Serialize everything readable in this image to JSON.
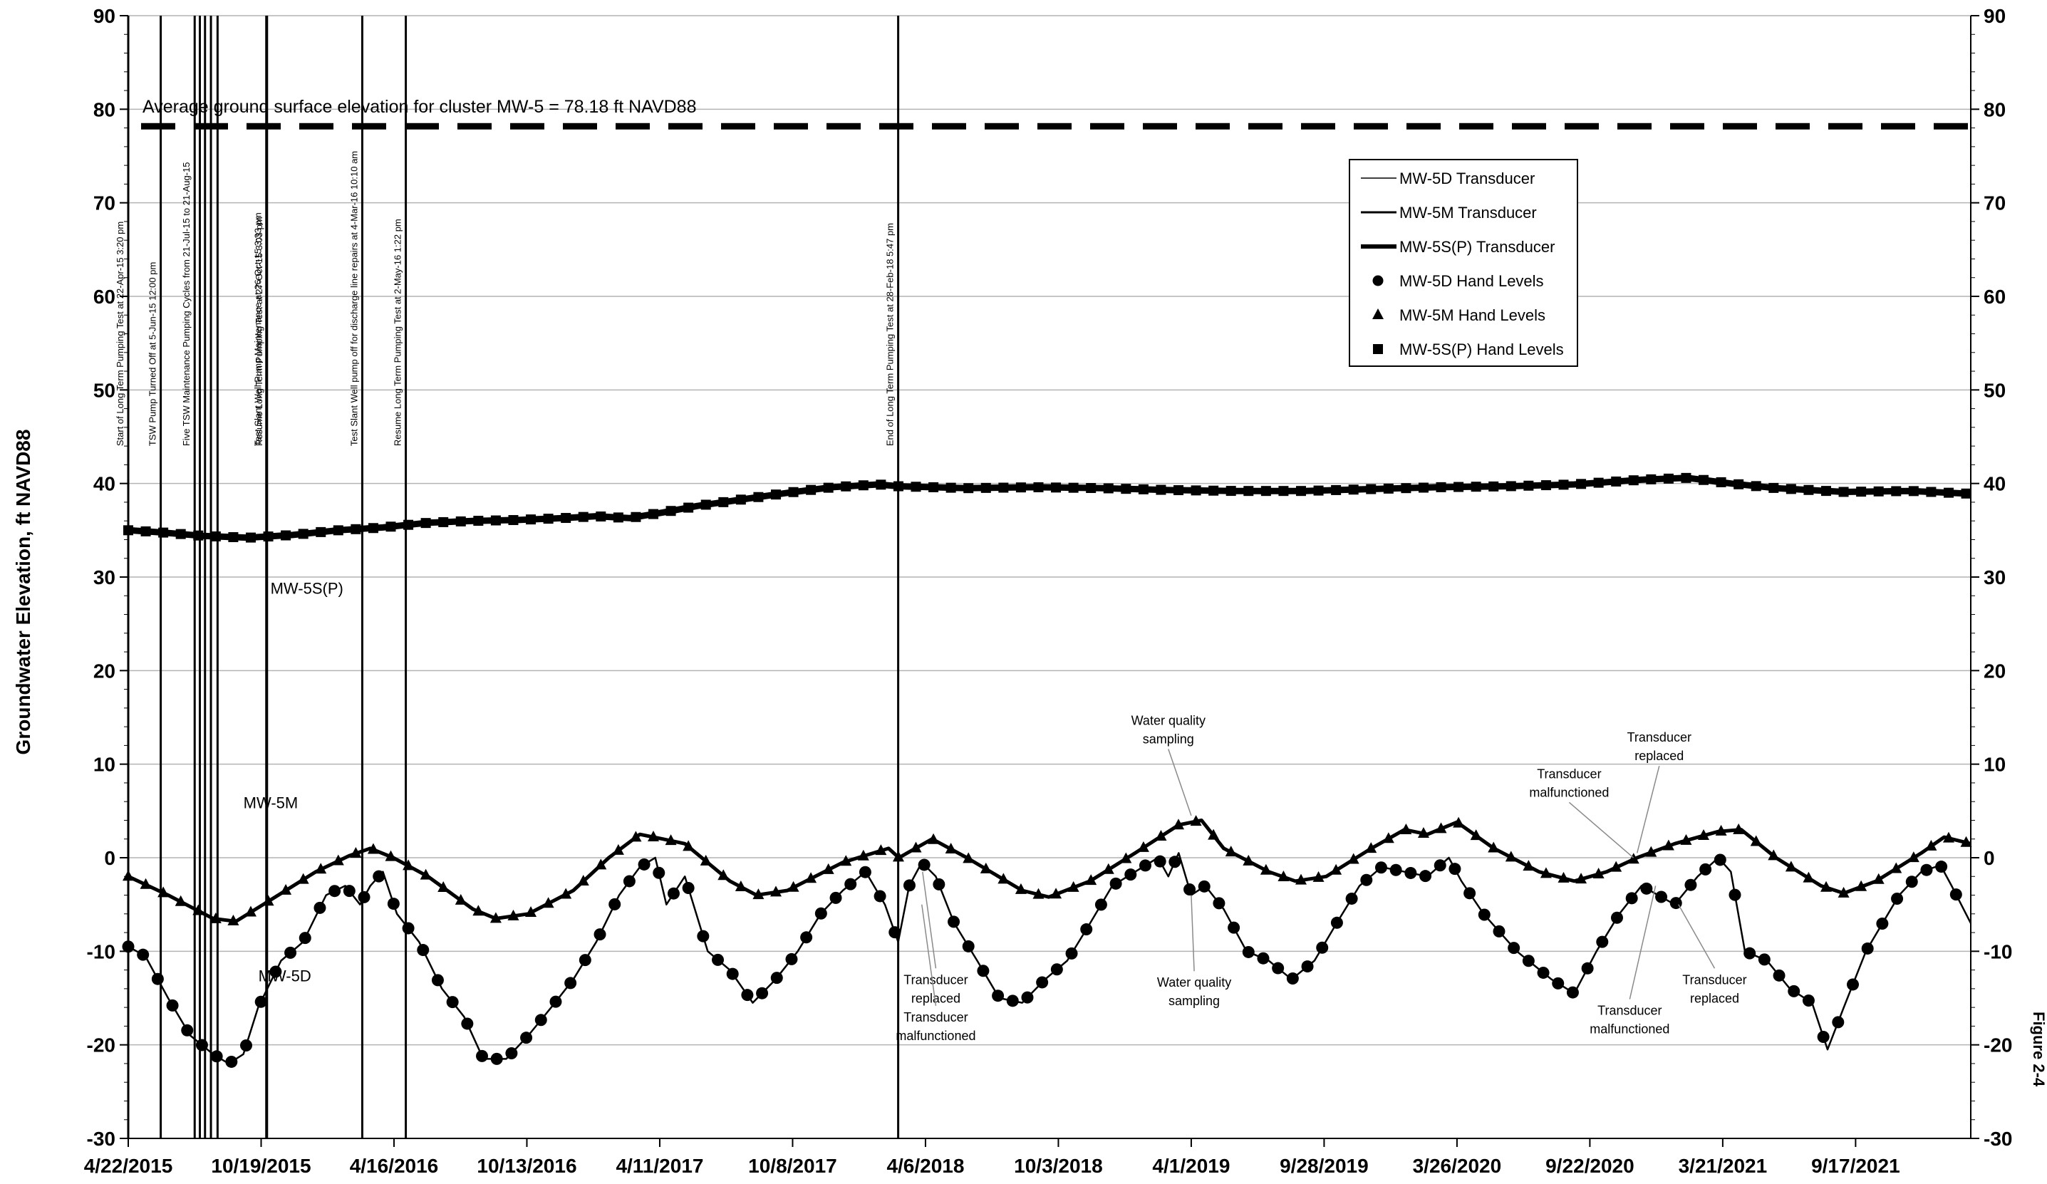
{
  "chart_data": {
    "type": "line",
    "ylabel": "Groundwater Elevation, ft NAVD88",
    "ylim": [
      -30,
      90
    ],
    "yticks": [
      "90",
      "80",
      "70",
      "60",
      "50",
      "40",
      "30",
      "20",
      "10",
      "0",
      "-10",
      "-20",
      "-30"
    ],
    "y2ticks": [
      "90",
      "80",
      "70",
      "60",
      "50",
      "40",
      "30",
      "20",
      "10",
      "0",
      "-10",
      "-20",
      "-30"
    ],
    "xlim": [
      "2015-04-22",
      "2022-02-20"
    ],
    "xticks": [
      {
        "date": "2015-04-22",
        "label": "4/22/2015"
      },
      {
        "date": "2015-10-19",
        "label": "10/19/2015"
      },
      {
        "date": "2016-04-16",
        "label": "4/16/2016"
      },
      {
        "date": "2016-10-13",
        "label": "10/13/2016"
      },
      {
        "date": "2017-04-11",
        "label": "4/11/2017"
      },
      {
        "date": "2017-10-08",
        "label": "10/8/2017"
      },
      {
        "date": "2018-04-06",
        "label": "4/6/2018"
      },
      {
        "date": "2018-10-03",
        "label": "10/3/2018"
      },
      {
        "date": "2019-04-01",
        "label": "4/1/2019"
      },
      {
        "date": "2019-09-28",
        "label": "9/28/2019"
      },
      {
        "date": "2020-03-26",
        "label": "3/26/2020"
      },
      {
        "date": "2020-09-22",
        "label": "9/22/2020"
      },
      {
        "date": "2021-03-21",
        "label": "3/21/2021"
      },
      {
        "date": "2021-09-17",
        "label": "9/17/2021"
      }
    ],
    "grid": true,
    "legend_position": "top-right",
    "legend": [
      {
        "label": "MW-5D Transducer",
        "kind": "line",
        "width": 1.5
      },
      {
        "label": "MW-5M Transducer",
        "kind": "line",
        "width": 3
      },
      {
        "label": "MW-5S(P) Transducer",
        "kind": "line",
        "width": 6
      },
      {
        "label": "MW-5D Hand Levels",
        "kind": "circle"
      },
      {
        "label": "MW-5M Hand Levels",
        "kind": "triangle"
      },
      {
        "label": "MW-5S(P) Hand Levels",
        "kind": "square"
      }
    ],
    "ground_surface": {
      "value": 78.18,
      "label": "Average ground surface elevation for cluster MW-5 = 78.18 ft NAVD88"
    },
    "events": [
      {
        "date": "2015-04-22",
        "label": "Start of Long Term Pumping Test at 22-Apr-15 3:20 pm"
      },
      {
        "date": "2015-06-05",
        "label": "TSW Pump Turned Off at 5-Jun-15 12:00 pm"
      },
      {
        "date": "2015-07-21",
        "label": "Five TSW Maintenance Pumping Cycles from 21-Jul-15 to 21-Aug-15"
      },
      {
        "date": "2015-07-28",
        "label": ""
      },
      {
        "date": "2015-08-04",
        "label": ""
      },
      {
        "date": "2015-08-12",
        "label": ""
      },
      {
        "date": "2015-08-21",
        "label": ""
      },
      {
        "date": "2015-10-26",
        "label": "Test Slant Well Pump Maintenance at 26-Oct-15 3:33 pm"
      },
      {
        "date": "2015-10-27",
        "label": "Resume Long Term Pumping Test at 27-Oct-15 3:03 pm"
      },
      {
        "date": "2016-03-04",
        "label": "Test Slant Well pump off for discharge line repairs at 4-Mar-16 10:10 am"
      },
      {
        "date": "2016-05-02",
        "label": "Resume Long Term Pumping Test at 2-May-16 1:22 pm"
      },
      {
        "date": "2018-02-28",
        "label": "End of Long Term Pumping Test at 28-Feb-18 5:47 pm"
      }
    ],
    "series": [
      {
        "name": "MW-5S(P)",
        "label": "MW-5S(P)",
        "points": [
          [
            "2015-04-22",
            35.0
          ],
          [
            "2015-06-01",
            34.8
          ],
          [
            "2015-08-01",
            34.4
          ],
          [
            "2015-10-01",
            34.2
          ],
          [
            "2015-12-01",
            34.5
          ],
          [
            "2016-02-01",
            35.0
          ],
          [
            "2016-04-01",
            35.3
          ],
          [
            "2016-06-01",
            35.8
          ],
          [
            "2016-08-01",
            36.0
          ],
          [
            "2016-10-01",
            36.1
          ],
          [
            "2016-12-01",
            36.3
          ],
          [
            "2017-01-15",
            36.5
          ],
          [
            "2017-03-01",
            36.3
          ],
          [
            "2017-04-15",
            36.9
          ],
          [
            "2017-06-01",
            37.6
          ],
          [
            "2017-08-01",
            38.3
          ],
          [
            "2017-10-01",
            39.0
          ],
          [
            "2017-12-01",
            39.6
          ],
          [
            "2018-02-01",
            39.9
          ],
          [
            "2018-03-01",
            39.7
          ],
          [
            "2018-06-01",
            39.5
          ],
          [
            "2018-09-01",
            39.6
          ],
          [
            "2018-12-01",
            39.5
          ],
          [
            "2019-03-01",
            39.3
          ],
          [
            "2019-06-01",
            39.2
          ],
          [
            "2019-09-01",
            39.2
          ],
          [
            "2019-12-01",
            39.4
          ],
          [
            "2020-03-01",
            39.6
          ],
          [
            "2020-06-01",
            39.7
          ],
          [
            "2020-09-01",
            39.9
          ],
          [
            "2020-12-01",
            40.4
          ],
          [
            "2021-02-01",
            40.6
          ],
          [
            "2021-04-01",
            40.0
          ],
          [
            "2021-06-01",
            39.5
          ],
          [
            "2021-09-01",
            39.1
          ],
          [
            "2021-12-01",
            39.2
          ],
          [
            "2022-02-20",
            38.9
          ]
        ]
      },
      {
        "name": "MW-5M",
        "label": "MW-5M",
        "points": [
          [
            "2015-04-22",
            -2.0
          ],
          [
            "2015-06-15",
            -4.0
          ],
          [
            "2015-08-15",
            -6.5
          ],
          [
            "2015-09-15",
            -6.8
          ],
          [
            "2015-11-01",
            -4.5
          ],
          [
            "2016-01-01",
            -1.5
          ],
          [
            "2016-02-15",
            0.2
          ],
          [
            "2016-03-15",
            1.0
          ],
          [
            "2016-04-15",
            0.0
          ],
          [
            "2016-06-01",
            -2.0
          ],
          [
            "2016-08-01",
            -5.5
          ],
          [
            "2016-09-01",
            -6.5
          ],
          [
            "2016-10-15",
            -6.0
          ],
          [
            "2016-12-15",
            -3.5
          ],
          [
            "2017-02-01",
            0.0
          ],
          [
            "2017-03-15",
            2.5
          ],
          [
            "2017-04-15",
            2.0
          ],
          [
            "2017-05-15",
            1.5
          ],
          [
            "2017-07-15",
            -2.5
          ],
          [
            "2017-08-20",
            -4.0
          ],
          [
            "2017-10-01",
            -3.5
          ],
          [
            "2017-12-15",
            -0.5
          ],
          [
            "2018-02-15",
            1.0
          ],
          [
            "2018-03-01",
            0.0
          ],
          [
            "2018-04-15",
            2.0
          ],
          [
            "2018-06-01",
            0.0
          ],
          [
            "2018-08-15",
            -3.5
          ],
          [
            "2018-09-20",
            -4.2
          ],
          [
            "2018-11-15",
            -2.5
          ],
          [
            "2019-01-15",
            0.5
          ],
          [
            "2019-03-15",
            3.5
          ],
          [
            "2019-04-15",
            4.0
          ],
          [
            "2019-05-15",
            1.0
          ],
          [
            "2019-07-15",
            -1.5
          ],
          [
            "2019-08-20",
            -2.5
          ],
          [
            "2019-10-01",
            -2.0
          ],
          [
            "2019-12-01",
            1.0
          ],
          [
            "2020-01-15",
            3.0
          ],
          [
            "2020-02-15",
            2.5
          ],
          [
            "2020-03-26",
            3.8
          ],
          [
            "2020-05-15",
            1.0
          ],
          [
            "2020-07-15",
            -1.5
          ],
          [
            "2020-09-01",
            -2.5
          ],
          [
            "2020-10-15",
            -1.5
          ],
          [
            "2020-11-25",
            0.0
          ],
          [
            "2021-01-15",
            1.5
          ],
          [
            "2021-03-15",
            2.8
          ],
          [
            "2021-04-15",
            3.0
          ],
          [
            "2021-06-01",
            0.0
          ],
          [
            "2021-08-01",
            -3.0
          ],
          [
            "2021-09-01",
            -3.8
          ],
          [
            "2021-10-15",
            -2.5
          ],
          [
            "2021-12-15",
            0.5
          ],
          [
            "2022-01-15",
            2.2
          ],
          [
            "2022-02-20",
            1.5
          ]
        ]
      },
      {
        "name": "MW-5D",
        "label": "MW-5D",
        "points": [
          [
            "2015-04-22",
            -9.5
          ],
          [
            "2015-05-15",
            -10.5
          ],
          [
            "2015-06-15",
            -15.0
          ],
          [
            "2015-07-15",
            -19.0
          ],
          [
            "2015-08-15",
            -21.0
          ],
          [
            "2015-09-05",
            -22.0
          ],
          [
            "2015-09-25",
            -21.0
          ],
          [
            "2015-10-15",
            -16.0
          ],
          [
            "2015-11-15",
            -11.0
          ],
          [
            "2015-12-15",
            -9.0
          ],
          [
            "2016-01-15",
            -4.0
          ],
          [
            "2016-02-10",
            -3.0
          ],
          [
            "2016-03-01",
            -5.0
          ],
          [
            "2016-03-15",
            -3.0
          ],
          [
            "2016-04-01",
            -1.5
          ],
          [
            "2016-04-20",
            -6.0
          ],
          [
            "2016-05-20",
            -9.0
          ],
          [
            "2016-06-20",
            -14.0
          ],
          [
            "2016-07-20",
            -17.0
          ],
          [
            "2016-08-15",
            -21.5
          ],
          [
            "2016-09-15",
            -21.5
          ],
          [
            "2016-10-15",
            -19.0
          ],
          [
            "2016-11-15",
            -16.0
          ],
          [
            "2016-12-15",
            -13.0
          ],
          [
            "2017-01-15",
            -9.0
          ],
          [
            "2017-02-15",
            -4.0
          ],
          [
            "2017-03-15",
            -1.0
          ],
          [
            "2017-04-05",
            0.0
          ],
          [
            "2017-04-20",
            -5.0
          ],
          [
            "2017-05-15",
            -2.0
          ],
          [
            "2017-06-15",
            -10.0
          ],
          [
            "2017-07-15",
            -12.0
          ],
          [
            "2017-08-15",
            -15.5
          ],
          [
            "2017-09-15",
            -13.0
          ],
          [
            "2017-10-15",
            -10.0
          ],
          [
            "2017-11-15",
            -6.0
          ],
          [
            "2017-12-15",
            -3.5
          ],
          [
            "2018-01-15",
            -1.5
          ],
          [
            "2018-02-10",
            -5.0
          ],
          [
            "2018-02-28",
            -9.0
          ],
          [
            "2018-03-15",
            -3.0
          ],
          [
            "2018-04-01",
            -0.5
          ],
          [
            "2018-04-20",
            -2.0
          ],
          [
            "2018-05-15",
            -7.0
          ],
          [
            "2018-06-15",
            -11.0
          ],
          [
            "2018-07-15",
            -15.0
          ],
          [
            "2018-08-15",
            -15.5
          ],
          [
            "2018-09-15",
            -13.0
          ],
          [
            "2018-10-15",
            -11.0
          ],
          [
            "2018-11-15",
            -7.0
          ],
          [
            "2018-12-15",
            -3.0
          ],
          [
            "2019-01-15",
            -1.5
          ],
          [
            "2019-02-15",
            0.0
          ],
          [
            "2019-03-01",
            -2.0
          ],
          [
            "2019-03-15",
            0.5
          ],
          [
            "2019-04-01",
            -4.0
          ],
          [
            "2019-04-20",
            -3.0
          ],
          [
            "2019-05-15",
            -5.5
          ],
          [
            "2019-06-15",
            -10.0
          ],
          [
            "2019-07-15",
            -11.0
          ],
          [
            "2019-08-15",
            -13.0
          ],
          [
            "2019-09-15",
            -11.0
          ],
          [
            "2019-10-15",
            -7.0
          ],
          [
            "2019-11-15",
            -3.0
          ],
          [
            "2019-12-15",
            -1.0
          ],
          [
            "2020-01-15",
            -1.5
          ],
          [
            "2020-02-15",
            -2.0
          ],
          [
            "2020-03-15",
            0.0
          ],
          [
            "2020-04-01",
            -2.5
          ],
          [
            "2020-05-01",
            -6.0
          ],
          [
            "2020-06-15",
            -10.0
          ],
          [
            "2020-08-01",
            -13.0
          ],
          [
            "2020-09-01",
            -14.5
          ],
          [
            "2020-10-01",
            -10.0
          ],
          [
            "2020-11-01",
            -6.0
          ],
          [
            "2020-12-01",
            -3.0
          ],
          [
            "2021-01-15",
            -5.0
          ],
          [
            "2021-02-15",
            -2.0
          ],
          [
            "2021-03-15",
            0.0
          ],
          [
            "2021-04-01",
            -1.5
          ],
          [
            "2021-04-20",
            -10.0
          ],
          [
            "2021-05-20",
            -11.0
          ],
          [
            "2021-06-20",
            -14.0
          ],
          [
            "2021-07-20",
            -15.5
          ],
          [
            "2021-08-10",
            -20.5
          ],
          [
            "2021-09-01",
            -16.0
          ],
          [
            "2021-10-01",
            -10.0
          ],
          [
            "2021-11-15",
            -4.0
          ],
          [
            "2021-12-15",
            -1.5
          ],
          [
            "2022-01-10",
            -0.8
          ],
          [
            "2022-01-25",
            -3.0
          ],
          [
            "2022-02-20",
            -7.0
          ]
        ]
      }
    ],
    "series_labels": [
      {
        "text": "MW-5S(P)",
        "date": "2015-12-20",
        "y": 28.2
      },
      {
        "text": "MW-5M",
        "date": "2015-11-01",
        "y": 5.3
      },
      {
        "text": "MW-5D",
        "date": "2015-11-20",
        "y": -13.2
      }
    ],
    "annotations": [
      {
        "lines": [
          "Water quality",
          "sampling"
        ],
        "date": "2019-03-01",
        "y": 14.2,
        "to_date": "2019-04-01",
        "to_y": 4.5
      },
      {
        "lines": [
          "Water quality",
          "sampling"
        ],
        "date": "2019-04-05",
        "y": -13.8,
        "to_date": "2019-04-01",
        "to_y": -4.0
      },
      {
        "lines": [
          "Transducer",
          "replaced"
        ],
        "date": "2018-04-20",
        "y": -13.5,
        "to_date": "2018-04-02",
        "to_y": -1.5
      },
      {
        "lines": [
          "Transducer",
          "malfunctioned"
        ],
        "date": "2018-04-20",
        "y": -17.5,
        "to_date": "2018-04-01",
        "to_y": -5.0
      },
      {
        "lines": [
          "Transducer",
          "malfunctioned"
        ],
        "date": "2020-08-25",
        "y": 8.5,
        "to_date": "2020-11-20",
        "to_y": 0.0
      },
      {
        "lines": [
          "Transducer",
          "replaced"
        ],
        "date": "2020-12-25",
        "y": 12.4,
        "to_date": "2020-11-25",
        "to_y": 0.5
      },
      {
        "lines": [
          "Transducer",
          "malfunctioned"
        ],
        "date": "2020-11-15",
        "y": -16.8,
        "to_date": "2020-12-20",
        "to_y": -3.0
      },
      {
        "lines": [
          "Transducer",
          "replaced"
        ],
        "date": "2021-03-10",
        "y": -13.5,
        "to_date": "2021-01-20",
        "to_y": -5.0
      }
    ],
    "figure_label": "Figure 2-4"
  }
}
